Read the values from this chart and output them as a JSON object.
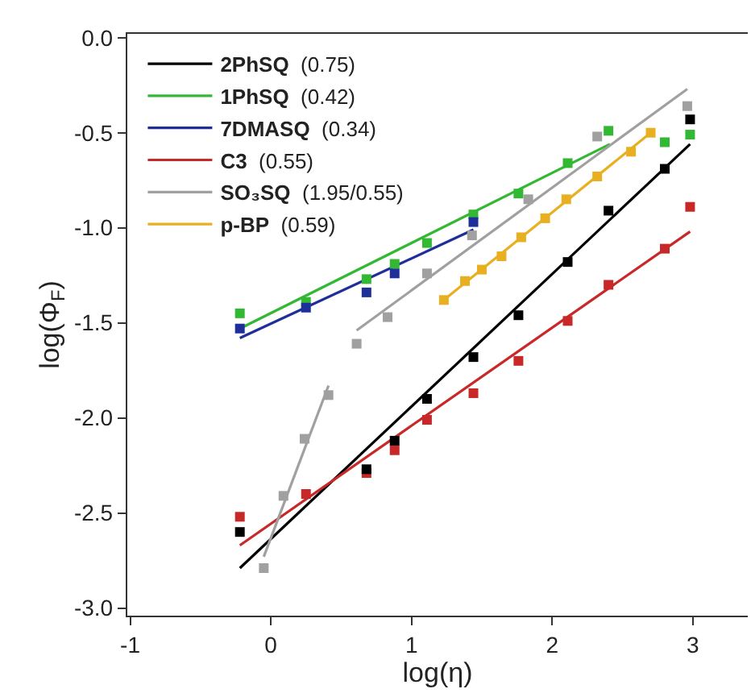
{
  "chart_data": {
    "type": "scatter",
    "xlabel": "log(η)",
    "ylabel": "log(Φ$_{F}$)",
    "xlim": [
      -1.02,
      3.39
    ],
    "ylim": [
      -3.04,
      0.02
    ],
    "xticks": [
      -1,
      0,
      1,
      2,
      3
    ],
    "yticks": [
      {
        "value": -3,
        "label": "-3.0"
      },
      {
        "value": -2.5,
        "label": "-2.5"
      },
      {
        "value": -2,
        "label": "-2.0"
      },
      {
        "value": -1.5,
        "label": "-1.5"
      },
      {
        "value": -1,
        "label": "-1.0"
      },
      {
        "value": -0.5,
        "label": "-0.5"
      },
      {
        "value": 0,
        "label": "0.0"
      }
    ],
    "legend": "top left",
    "marker": "square",
    "series": [
      {
        "type": "line",
        "marker": "none",
        "name": "2PhSQ (0.75)",
        "color": "#000000",
        "x": [
          -0.22,
          2.98
        ],
        "values": [
          -2.79,
          -0.56
        ]
      },
      {
        "type": "line",
        "marker": "none",
        "name": "1PhSQ (0.42)",
        "color": "#33b833",
        "x": [
          -0.22,
          2.41
        ],
        "values": [
          -1.53,
          -0.56
        ]
      },
      {
        "type": "line",
        "marker": "none",
        "name": "7DMASQ (0.34)",
        "color": "#1f2f9a",
        "x": [
          -0.22,
          1.44
        ],
        "values": [
          -1.58,
          -1.01
        ]
      },
      {
        "type": "line",
        "marker": "none",
        "name": "C3 (0.55)",
        "color": "#c82828",
        "x": [
          -0.22,
          2.98
        ],
        "values": [
          -2.67,
          -1.02
        ]
      },
      {
        "type": "line",
        "marker": "none",
        "name": "SO₃SQ (1.95/0.55)",
        "color": "#a0a0a0",
        "x": [
          -0.05,
          0.41
        ],
        "values": [
          -2.73,
          -1.83
        ]
      },
      {
        "type": "line",
        "marker": "none",
        "name": "p-BP (0.59)",
        "color": "#e8b020",
        "x": [
          1.23,
          2.7
        ],
        "values": [
          -1.38,
          -0.5
        ]
      },
      {
        "type": "line",
        "marker": "none",
        "color": "#a0a0a0",
        "x": [
          0.61,
          2.96
        ],
        "values": [
          -1.54,
          -0.27
        ]
      },
      {
        "color": "#c82828",
        "x": [
          -0.22,
          0.25,
          0.68,
          0.88,
          1.11,
          1.44,
          1.76,
          2.11,
          2.4,
          2.8,
          2.98
        ],
        "values": [
          -2.52,
          -2.4,
          -2.29,
          -2.17,
          -2.01,
          -1.87,
          -1.7,
          -1.49,
          -1.3,
          -1.11,
          -0.89
        ]
      },
      {
        "color": "#33b833",
        "x": [
          -0.22,
          0.25,
          0.68,
          0.88,
          1.11,
          1.44,
          1.76,
          2.11,
          2.4,
          2.8,
          2.98
        ],
        "values": [
          -1.45,
          -1.39,
          -1.27,
          -1.19,
          -1.08,
          -0.93,
          -0.82,
          -0.66,
          -0.49,
          -0.55,
          -0.51
        ]
      },
      {
        "color": "#1f2f9a",
        "x": [
          -0.22,
          0.25,
          0.68,
          0.88,
          1.44
        ],
        "values": [
          -1.53,
          -1.42,
          -1.34,
          -1.24,
          -0.97
        ]
      },
      {
        "color": "#a0a0a0",
        "x": [
          -0.05,
          0.09,
          0.24,
          0.41,
          0.61,
          0.83,
          1.11,
          1.43,
          1.83,
          2.32,
          2.96
        ],
        "values": [
          -2.79,
          -2.41,
          -2.11,
          -1.88,
          -1.61,
          -1.47,
          -1.24,
          -1.04,
          -0.85,
          -0.52,
          -0.36
        ]
      },
      {
        "color": "#e8b020",
        "x": [
          1.23,
          1.38,
          1.5,
          1.64,
          1.78,
          1.95,
          2.1,
          2.32,
          2.56,
          2.7
        ],
        "values": [
          -1.38,
          -1.28,
          -1.22,
          -1.15,
          -1.05,
          -0.95,
          -0.85,
          -0.73,
          -0.6,
          -0.5
        ]
      },
      {
        "color": "#000000",
        "x": [
          -0.22,
          0.68,
          0.88,
          1.11,
          1.44,
          1.76,
          2.11,
          2.4,
          2.8,
          2.98
        ],
        "values": [
          -2.6,
          -2.27,
          -2.12,
          -1.9,
          -1.68,
          -1.46,
          -1.18,
          -0.91,
          -0.69,
          -0.43
        ]
      }
    ]
  }
}
